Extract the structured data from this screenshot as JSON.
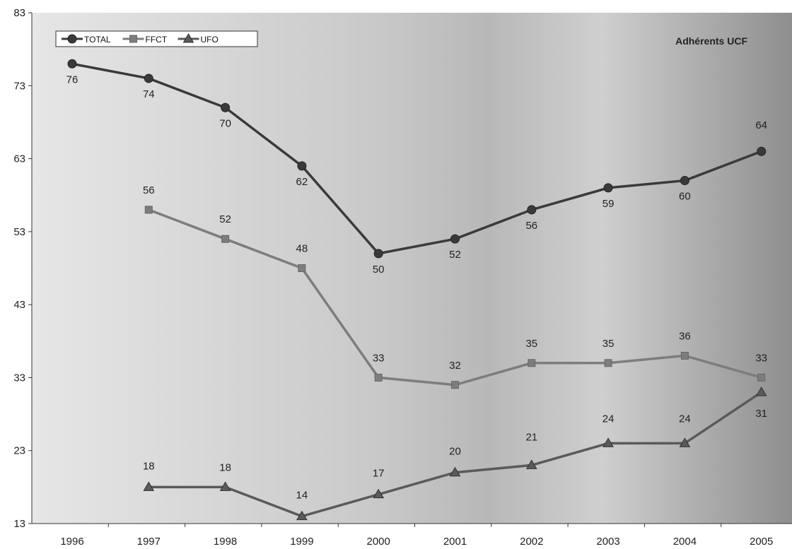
{
  "chart_data": {
    "type": "line",
    "title": "Adhérents UCF",
    "xlabel": "",
    "ylabel": "",
    "x": [
      "1996",
      "1997",
      "1998",
      "1999",
      "2000",
      "2001",
      "2002",
      "2003",
      "2004",
      "2005"
    ],
    "yticks": [
      13,
      23,
      33,
      43,
      53,
      63,
      73,
      83
    ],
    "ylim": [
      13,
      83
    ],
    "grid": false,
    "legend_position": "top-left",
    "series": [
      {
        "name": "TOTAL",
        "marker": "circle",
        "color": "#3a3a3a",
        "values": [
          76,
          74,
          70,
          62,
          50,
          52,
          56,
          59,
          60,
          64
        ],
        "labels": [
          "76",
          "74",
          "70",
          "62",
          "50",
          "52",
          "56",
          "59",
          "60",
          "64"
        ]
      },
      {
        "name": "FFCT",
        "marker": "square",
        "color": "#7d7d7d",
        "values": [
          null,
          56,
          52,
          48,
          33,
          32,
          35,
          35,
          36,
          33
        ],
        "labels": [
          null,
          "56",
          "52",
          "48",
          "33",
          "32",
          "35",
          "35",
          "36",
          "33"
        ]
      },
      {
        "name": "UFO",
        "marker": "triangle",
        "color": "#5a5a5a",
        "values": [
          null,
          18,
          18,
          14,
          17,
          20,
          21,
          24,
          24,
          31
        ],
        "labels": [
          null,
          "18",
          "18",
          "14",
          "17",
          "20",
          "21",
          "24",
          "24",
          "31"
        ]
      }
    ]
  }
}
